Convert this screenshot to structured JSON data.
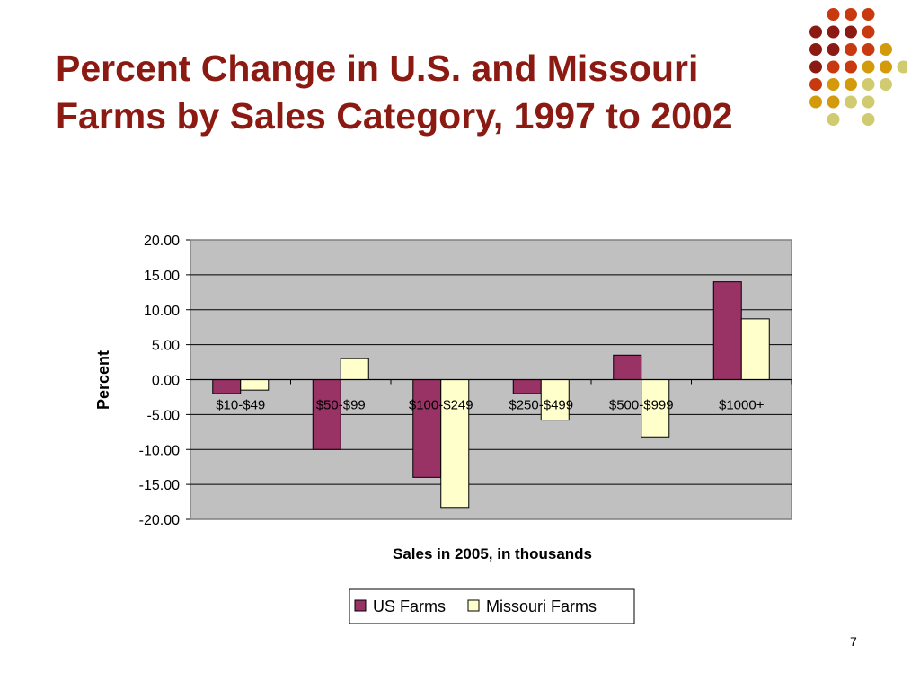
{
  "slide": {
    "title_line1": "Percent Change in U.S. and Missouri",
    "title_line2": "Farms by Sales Category, 1997 to 2002",
    "page_number": "7"
  },
  "decoration": {
    "dot_colors": [
      "#8b1a12",
      "#c8390f",
      "#d39a0c",
      "#cfcb6e"
    ]
  },
  "chart_data": {
    "type": "bar",
    "title": "",
    "xlabel": "Sales in 2005, in thousands",
    "ylabel": "Percent",
    "categories": [
      "$10-$49",
      "$50-$99",
      "$100-$249",
      "$250-$499",
      "$500-$999",
      "$1000+"
    ],
    "series": [
      {
        "name": "US Farms",
        "color": "#993366",
        "values": [
          -2.0,
          -10.0,
          -14.0,
          -2.0,
          3.5,
          14.0
        ]
      },
      {
        "name": "Missouri Farms",
        "color": "#ffffcc",
        "values": [
          -1.5,
          3.0,
          -18.3,
          -5.8,
          -8.2,
          8.7
        ]
      }
    ],
    "ylim": [
      -20,
      20
    ],
    "yticks": [
      "20.00",
      "15.00",
      "10.00",
      "5.00",
      "0.00",
      "-5.00",
      "-10.00",
      "-15.00",
      "-20.00"
    ],
    "grid": true,
    "plot_background": "#c0c0c0",
    "legend_position": "bottom"
  }
}
